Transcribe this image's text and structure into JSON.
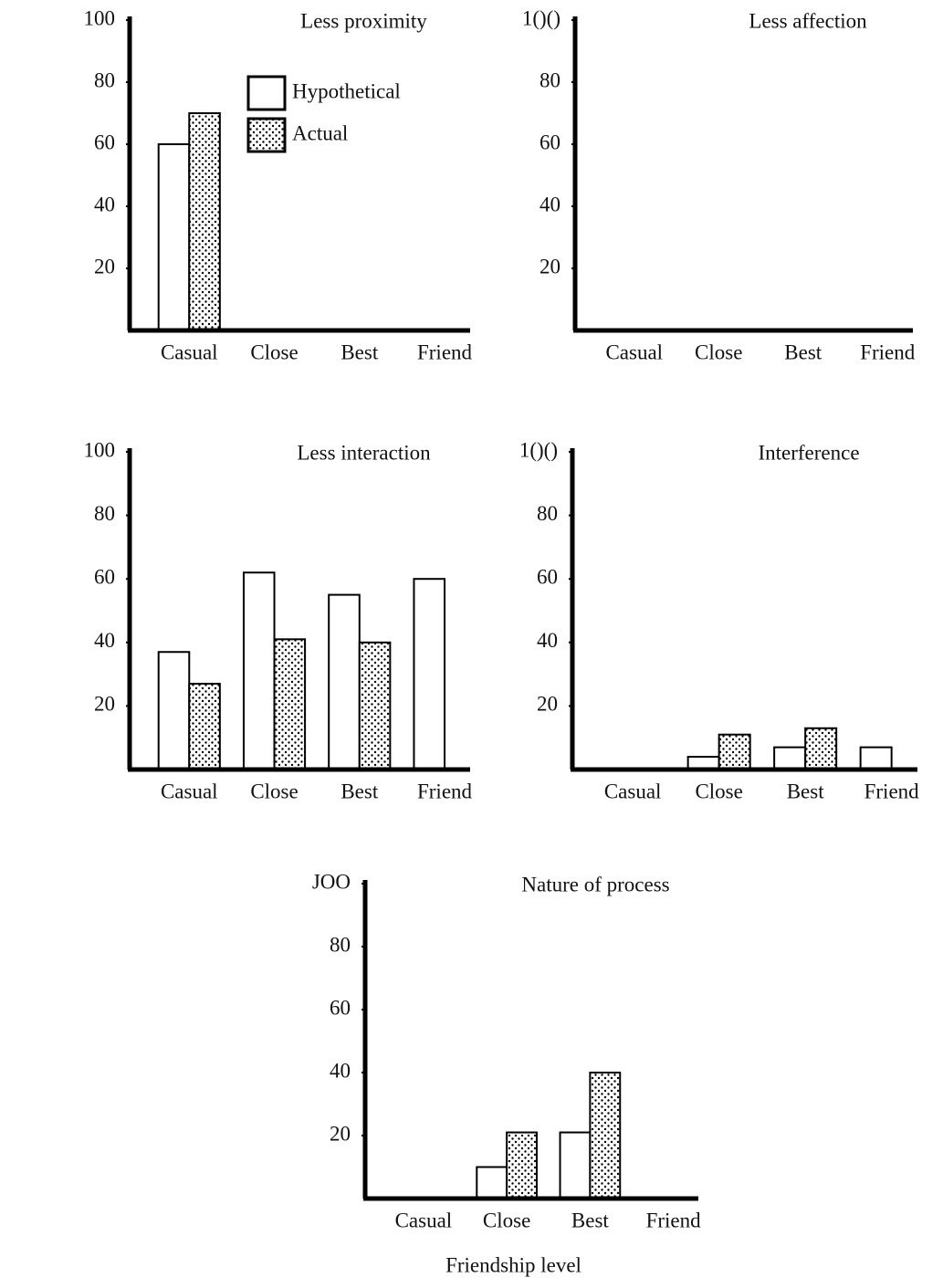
{
  "chart_data": [
    {
      "type": "bar",
      "title": "Less proximity",
      "categories": [
        "Casual",
        "Close",
        "Best",
        "Friend"
      ],
      "series": [
        {
          "name": "Hypothetical",
          "color": "#ffffff",
          "values": [
            60,
            0,
            0,
            0
          ]
        },
        {
          "name": "Actual",
          "color": "#000000",
          "pattern": "dots",
          "values": [
            70,
            0,
            0,
            0
          ]
        }
      ],
      "legend": true,
      "ylim": [
        0,
        100
      ],
      "yticks": [
        20,
        40,
        60,
        80,
        100
      ]
    },
    {
      "type": "bar",
      "title": "Less affection",
      "categories": [
        "Casual",
        "Close",
        "Best",
        "Friend"
      ],
      "series": [
        {
          "color": "#ffffff",
          "values": [
            0,
            0,
            0,
            0
          ]
        },
        {
          "color": "#000000",
          "pattern": "dots",
          "values": [
            0,
            0,
            0,
            0
          ]
        }
      ],
      "ylim": [
        0,
        100
      ],
      "yticks": [
        20,
        40,
        60,
        80,
        {
          "value": 100,
          "label": "1()()"
        }
      ]
    },
    {
      "type": "bar",
      "title": "Less interaction",
      "categories": [
        "Casual",
        "Close",
        "Best",
        "Friend"
      ],
      "series": [
        {
          "color": "#ffffff",
          "values": [
            37,
            62,
            55,
            60
          ]
        },
        {
          "color": "#000000",
          "pattern": "dots",
          "values": [
            27,
            41,
            40,
            null
          ]
        }
      ],
      "ylim": [
        0,
        100
      ],
      "yticks": [
        20,
        40,
        60,
        80,
        100
      ]
    },
    {
      "type": "bar",
      "title": "Interference",
      "categories": [
        "Casual",
        "Close",
        "Best",
        "Friend"
      ],
      "series": [
        {
          "color": "#ffffff",
          "values": [
            0,
            4,
            7,
            7
          ]
        },
        {
          "color": "#000000",
          "pattern": "dots",
          "values": [
            0,
            11,
            13,
            null
          ]
        }
      ],
      "ylim": [
        0,
        100
      ],
      "yticks": [
        20,
        40,
        60,
        80,
        {
          "value": 100,
          "label": "1()()"
        }
      ]
    },
    {
      "type": "bar",
      "title": "Nature of process",
      "categories": [
        "Casual",
        "Close",
        "Best",
        "Friend"
      ],
      "xlabel": "Friendship level",
      "series": [
        {
          "color": "#ffffff",
          "values": [
            0,
            10,
            21,
            0
          ]
        },
        {
          "color": "#000000",
          "pattern": "dots",
          "values": [
            0,
            21,
            40,
            0
          ]
        }
      ],
      "ylim": [
        0,
        100
      ],
      "yticks": [
        20,
        40,
        60,
        80,
        {
          "value": 100,
          "label": "JOO"
        }
      ]
    }
  ]
}
